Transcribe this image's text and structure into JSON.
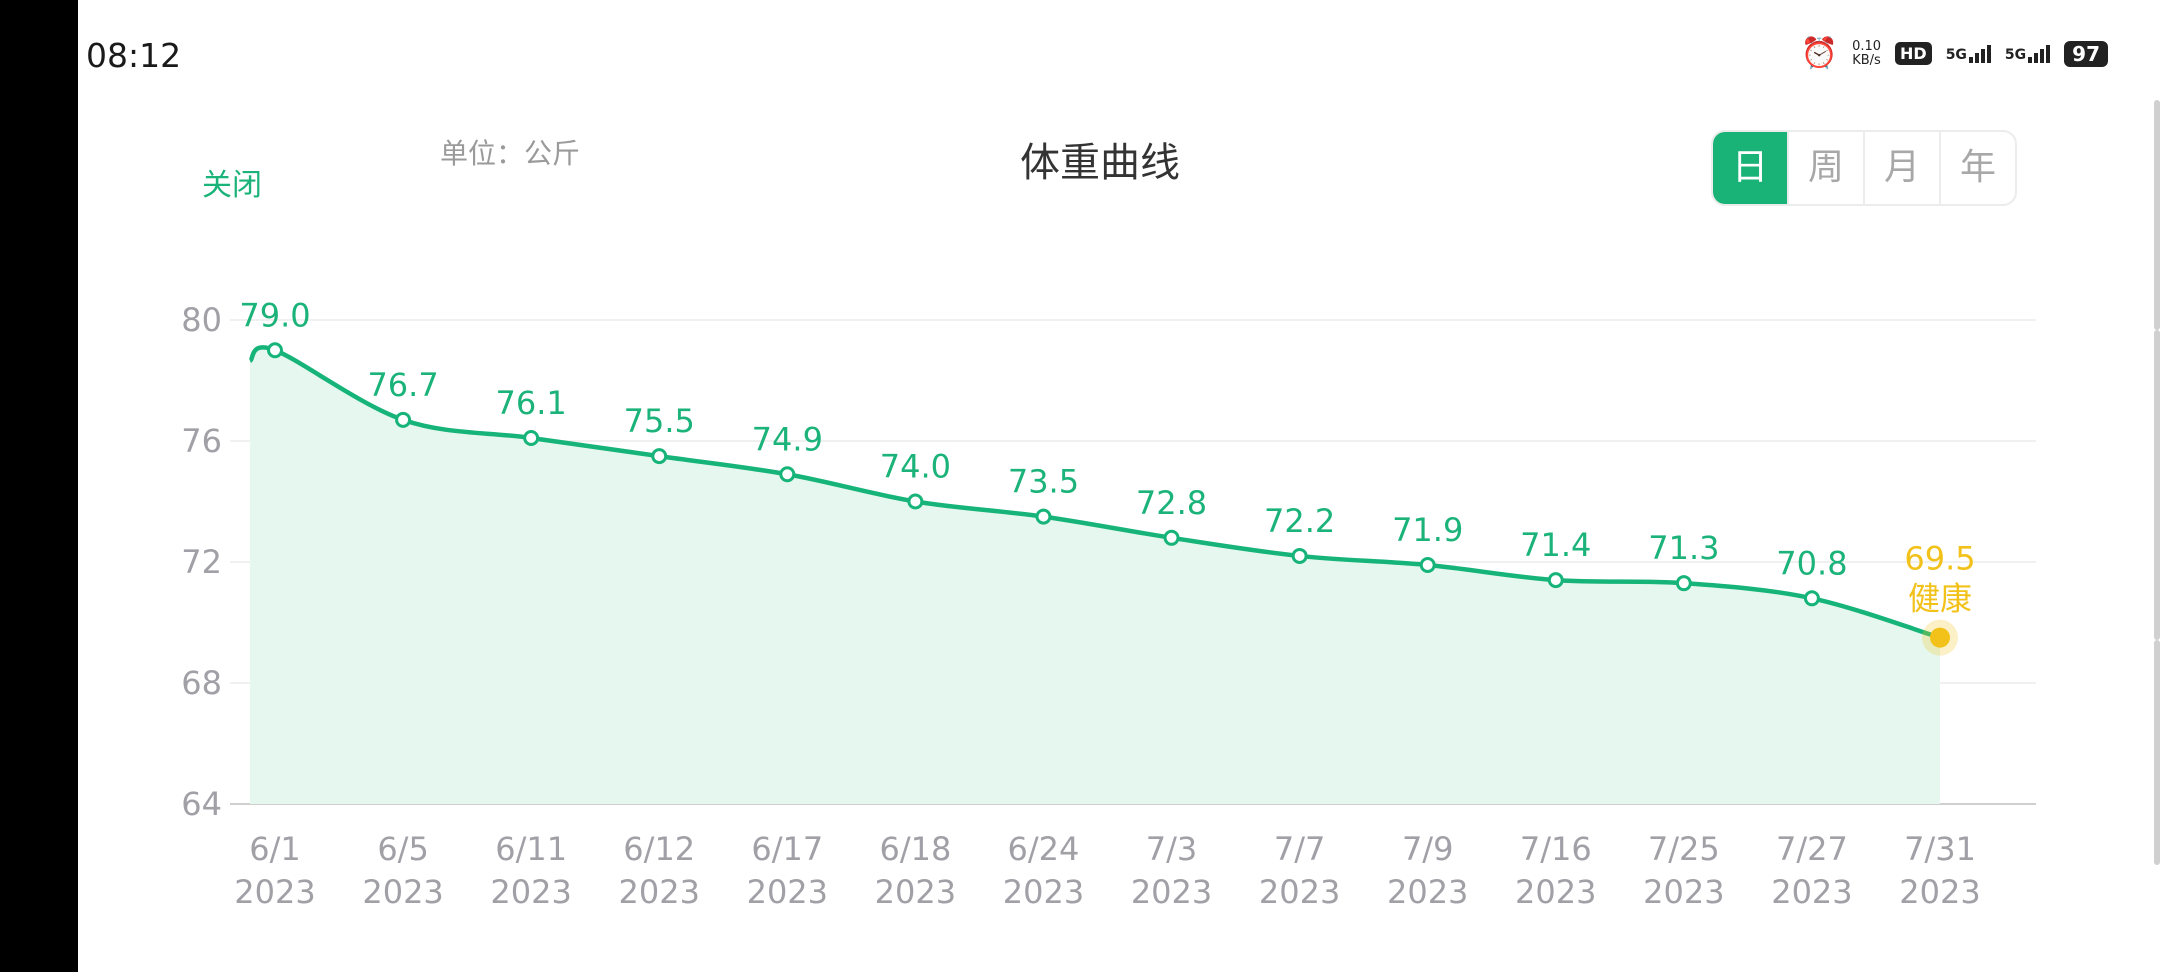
{
  "status_bar": {
    "time": "08:12",
    "net_speed_value": "0.10",
    "net_speed_unit": "KB/s",
    "hd_label": "HD",
    "signal1_label": "5G",
    "signal2_label": "5G",
    "battery": "97"
  },
  "header": {
    "close_label": "关闭",
    "unit_label": "单位：公斤",
    "title": "体重曲线",
    "tabs": [
      {
        "label": "日",
        "active": true
      },
      {
        "label": "周",
        "active": false
      },
      {
        "label": "月",
        "active": false
      },
      {
        "label": "年",
        "active": false
      }
    ]
  },
  "colors": {
    "accent": "#19b277",
    "line": "#17b47a",
    "fill": "#e6f7ef",
    "highlight": "#f2c21b",
    "grid": "#ececec",
    "axis_text": "#a0a0a6"
  },
  "chart_data": {
    "type": "area",
    "title": "体重曲线",
    "ylabel": "单位：公斤",
    "ylim": [
      64,
      80
    ],
    "yticks": [
      80,
      76,
      72,
      68,
      64
    ],
    "grid": true,
    "categories": [
      "6/1",
      "6/5",
      "6/11",
      "6/12",
      "6/17",
      "6/18",
      "6/24",
      "7/3",
      "7/7",
      "7/9",
      "7/16",
      "7/25",
      "7/27",
      "7/31"
    ],
    "year_labels": [
      "2023",
      "2023",
      "2023",
      "2023",
      "2023",
      "2023",
      "2023",
      "2023",
      "2023",
      "2023",
      "2023",
      "2023",
      "2023",
      "2023"
    ],
    "values": [
      79.0,
      76.7,
      76.1,
      75.5,
      74.9,
      74.0,
      73.5,
      72.8,
      72.2,
      71.9,
      71.4,
      71.3,
      70.8,
      69.5
    ],
    "value_labels": [
      "79.0",
      "76.7",
      "76.1",
      "75.5",
      "74.9",
      "74.0",
      "73.5",
      "72.8",
      "72.2",
      "71.9",
      "71.4",
      "71.3",
      "70.8",
      "69.5"
    ],
    "last_point_status": "健康"
  }
}
